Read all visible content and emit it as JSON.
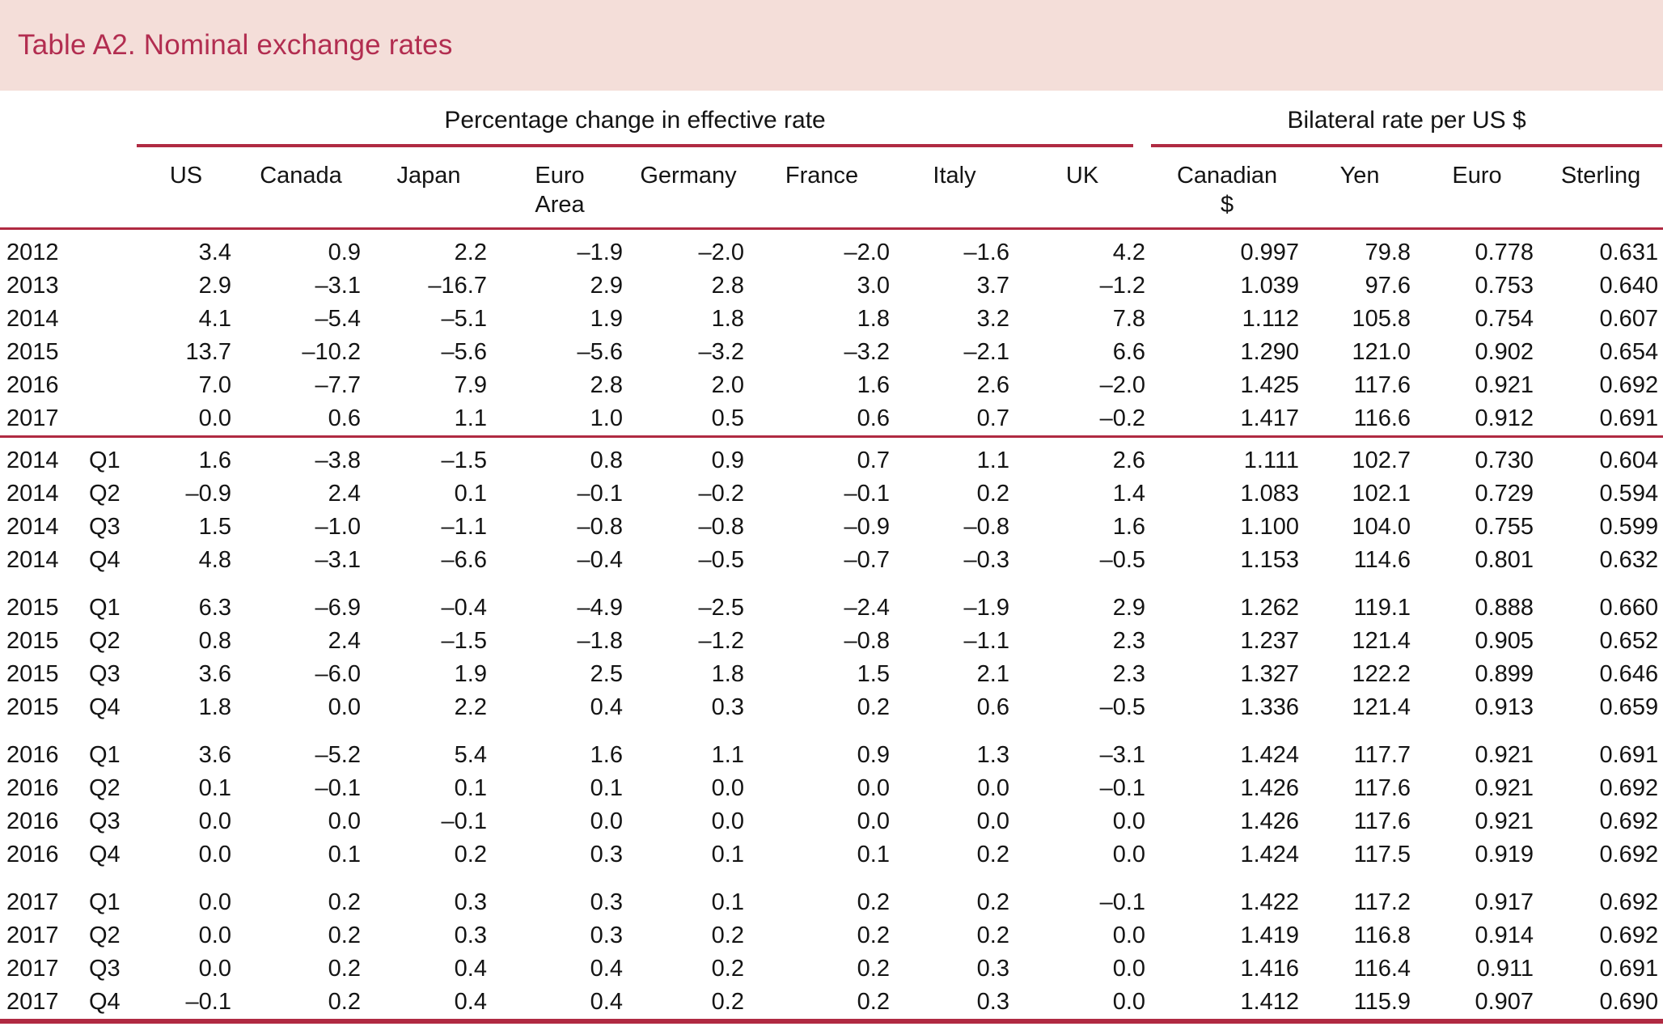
{
  "title": "Table A2. Nominal exchange rates",
  "colors": {
    "band_background": "#f4ded9",
    "title_text": "#b22d50",
    "rule": "#b02a42"
  },
  "table": {
    "group_headers": [
      {
        "label": "Percentage change in effective rate",
        "span": 8
      },
      {
        "label": "Bilateral rate per US $",
        "span": 4
      }
    ],
    "columns": [
      "US",
      "Canada",
      "Japan",
      "Euro\nArea",
      "Germany",
      "France",
      "Italy",
      "UK",
      "Canadian\n$",
      "Yen",
      "Euro",
      "Sterling"
    ],
    "sections": [
      {
        "id": "annual",
        "rows": [
          {
            "year": "2012",
            "quarter": "",
            "values": [
              "3.4",
              "0.9",
              "2.2",
              "–1.9",
              "–2.0",
              "–2.0",
              "–1.6",
              "4.2",
              "0.997",
              "79.8",
              "0.778",
              "0.631"
            ]
          },
          {
            "year": "2013",
            "quarter": "",
            "values": [
              "2.9",
              "–3.1",
              "–16.7",
              "2.9",
              "2.8",
              "3.0",
              "3.7",
              "–1.2",
              "1.039",
              "97.6",
              "0.753",
              "0.640"
            ]
          },
          {
            "year": "2014",
            "quarter": "",
            "values": [
              "4.1",
              "–5.4",
              "–5.1",
              "1.9",
              "1.8",
              "1.8",
              "3.2",
              "7.8",
              "1.112",
              "105.8",
              "0.754",
              "0.607"
            ]
          },
          {
            "year": "2015",
            "quarter": "",
            "values": [
              "13.7",
              "–10.2",
              "–5.6",
              "–5.6",
              "–3.2",
              "–3.2",
              "–2.1",
              "6.6",
              "1.290",
              "121.0",
              "0.902",
              "0.654"
            ]
          },
          {
            "year": "2016",
            "quarter": "",
            "values": [
              "7.0",
              "–7.7",
              "7.9",
              "2.8",
              "2.0",
              "1.6",
              "2.6",
              "–2.0",
              "1.425",
              "117.6",
              "0.921",
              "0.692"
            ]
          },
          {
            "year": "2017",
            "quarter": "",
            "values": [
              "0.0",
              "0.6",
              "1.1",
              "1.0",
              "0.5",
              "0.6",
              "0.7",
              "–0.2",
              "1.417",
              "116.6",
              "0.912",
              "0.691"
            ]
          }
        ]
      },
      {
        "id": "quarters-2014",
        "rows": [
          {
            "year": "2014",
            "quarter": "Q1",
            "values": [
              "1.6",
              "–3.8",
              "–1.5",
              "0.8",
              "0.9",
              "0.7",
              "1.1",
              "2.6",
              "1.111",
              "102.7",
              "0.730",
              "0.604"
            ]
          },
          {
            "year": "2014",
            "quarter": "Q2",
            "values": [
              "–0.9",
              "2.4",
              "0.1",
              "–0.1",
              "–0.2",
              "–0.1",
              "0.2",
              "1.4",
              "1.083",
              "102.1",
              "0.729",
              "0.594"
            ]
          },
          {
            "year": "2014",
            "quarter": "Q3",
            "values": [
              "1.5",
              "–1.0",
              "–1.1",
              "–0.8",
              "–0.8",
              "–0.9",
              "–0.8",
              "1.6",
              "1.100",
              "104.0",
              "0.755",
              "0.599"
            ]
          },
          {
            "year": "2014",
            "quarter": "Q4",
            "values": [
              "4.8",
              "–3.1",
              "–6.6",
              "–0.4",
              "–0.5",
              "–0.7",
              "–0.3",
              "–0.5",
              "1.153",
              "114.6",
              "0.801",
              "0.632"
            ]
          }
        ]
      },
      {
        "id": "quarters-2015",
        "rows": [
          {
            "year": "2015",
            "quarter": "Q1",
            "values": [
              "6.3",
              "–6.9",
              "–0.4",
              "–4.9",
              "–2.5",
              "–2.4",
              "–1.9",
              "2.9",
              "1.262",
              "119.1",
              "0.888",
              "0.660"
            ]
          },
          {
            "year": "2015",
            "quarter": "Q2",
            "values": [
              "0.8",
              "2.4",
              "–1.5",
              "–1.8",
              "–1.2",
              "–0.8",
              "–1.1",
              "2.3",
              "1.237",
              "121.4",
              "0.905",
              "0.652"
            ]
          },
          {
            "year": "2015",
            "quarter": "Q3",
            "values": [
              "3.6",
              "–6.0",
              "1.9",
              "2.5",
              "1.8",
              "1.5",
              "2.1",
              "2.3",
              "1.327",
              "122.2",
              "0.899",
              "0.646"
            ]
          },
          {
            "year": "2015",
            "quarter": "Q4",
            "values": [
              "1.8",
              "0.0",
              "2.2",
              "0.4",
              "0.3",
              "0.2",
              "0.6",
              "–0.5",
              "1.336",
              "121.4",
              "0.913",
              "0.659"
            ]
          }
        ]
      },
      {
        "id": "quarters-2016",
        "rows": [
          {
            "year": "2016",
            "quarter": "Q1",
            "values": [
              "3.6",
              "–5.2",
              "5.4",
              "1.6",
              "1.1",
              "0.9",
              "1.3",
              "–3.1",
              "1.424",
              "117.7",
              "0.921",
              "0.691"
            ]
          },
          {
            "year": "2016",
            "quarter": "Q2",
            "values": [
              "0.1",
              "–0.1",
              "0.1",
              "0.1",
              "0.0",
              "0.0",
              "0.0",
              "–0.1",
              "1.426",
              "117.6",
              "0.921",
              "0.692"
            ]
          },
          {
            "year": "2016",
            "quarter": "Q3",
            "values": [
              "0.0",
              "0.0",
              "–0.1",
              "0.0",
              "0.0",
              "0.0",
              "0.0",
              "0.0",
              "1.426",
              "117.6",
              "0.921",
              "0.692"
            ]
          },
          {
            "year": "2016",
            "quarter": "Q4",
            "values": [
              "0.0",
              "0.1",
              "0.2",
              "0.3",
              "0.1",
              "0.1",
              "0.2",
              "0.0",
              "1.424",
              "117.5",
              "0.919",
              "0.692"
            ]
          }
        ]
      },
      {
        "id": "quarters-2017",
        "rows": [
          {
            "year": "2017",
            "quarter": "Q1",
            "values": [
              "0.0",
              "0.2",
              "0.3",
              "0.3",
              "0.1",
              "0.2",
              "0.2",
              "–0.1",
              "1.422",
              "117.2",
              "0.917",
              "0.692"
            ]
          },
          {
            "year": "2017",
            "quarter": "Q2",
            "values": [
              "0.0",
              "0.2",
              "0.3",
              "0.3",
              "0.2",
              "0.2",
              "0.2",
              "0.0",
              "1.419",
              "116.8",
              "0.914",
              "0.692"
            ]
          },
          {
            "year": "2017",
            "quarter": "Q3",
            "values": [
              "0.0",
              "0.2",
              "0.4",
              "0.4",
              "0.2",
              "0.2",
              "0.3",
              "0.0",
              "1.416",
              "116.4",
              "0.911",
              "0.691"
            ]
          },
          {
            "year": "2017",
            "quarter": "Q4",
            "values": [
              "–0.1",
              "0.2",
              "0.4",
              "0.4",
              "0.2",
              "0.2",
              "0.3",
              "0.0",
              "1.412",
              "115.9",
              "0.907",
              "0.690"
            ]
          }
        ]
      }
    ]
  }
}
